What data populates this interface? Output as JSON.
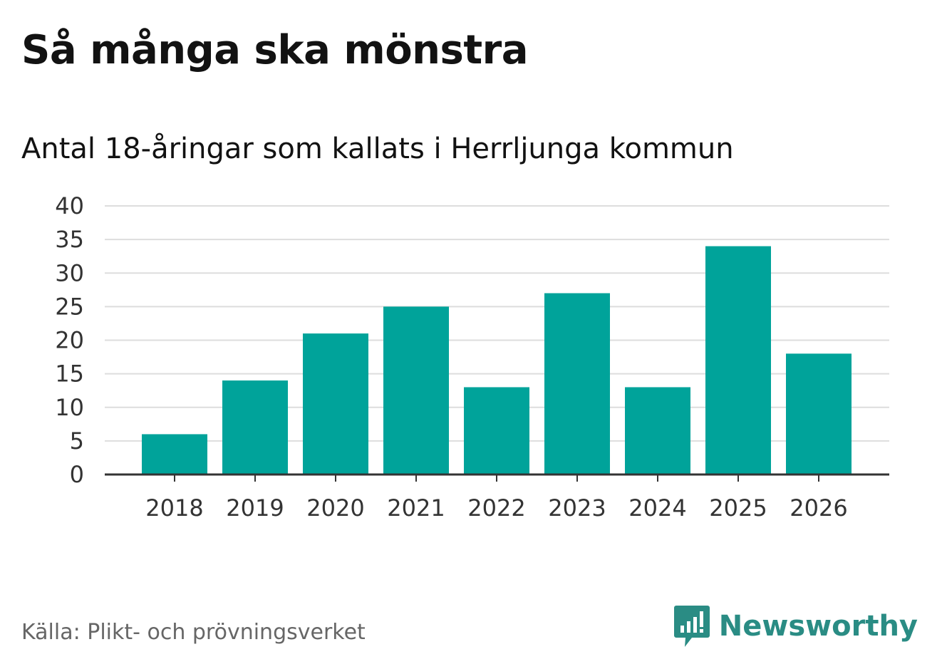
{
  "header": {
    "title": "Så många ska mönstra",
    "subtitle": "Antal 18-åringar som kallats i Herrljunga kommun"
  },
  "footer": {
    "source": "Källa: Plikt- och prövningsverket",
    "brand": "Newsworthy",
    "brand_icon": "newsworthy-logo-icon"
  },
  "colors": {
    "bar": "#00a39a",
    "grid": "#dddddd",
    "axis": "#333333",
    "brand": "#2a8c84"
  },
  "chart_data": {
    "type": "bar",
    "title": "Så många ska mönstra",
    "subtitle": "Antal 18-åringar som kallats i Herrljunga kommun",
    "categories": [
      "2018",
      "2019",
      "2020",
      "2021",
      "2022",
      "2023",
      "2024",
      "2025",
      "2026"
    ],
    "values": [
      6,
      14,
      21,
      25,
      13,
      27,
      13,
      34,
      18
    ],
    "xlabel": "",
    "ylabel": "",
    "ylim": [
      0,
      40
    ],
    "yticks": [
      0,
      5,
      10,
      15,
      20,
      25,
      30,
      35,
      40
    ],
    "grid": true,
    "legend": "none"
  }
}
